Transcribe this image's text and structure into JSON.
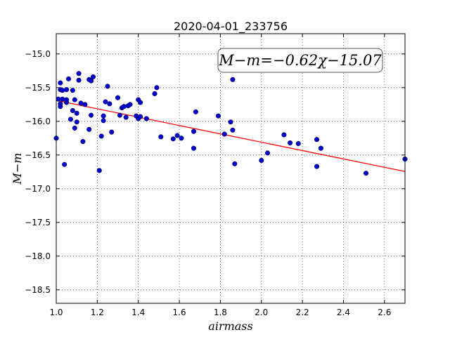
{
  "chart_data": {
    "type": "scatter",
    "title": "2020-04-01_233756",
    "xlabel": "airmass",
    "ylabel": "M−m",
    "xlim": [
      1.0,
      2.7
    ],
    "ylim": [
      -18.7,
      -14.7
    ],
    "y_inverted": true,
    "grid": true,
    "xticks": [
      "1.0",
      "1.2",
      "1.4",
      "1.6",
      "1.8",
      "2.0",
      "2.2",
      "2.4",
      "2.6"
    ],
    "yticks": [
      "−15.0",
      "−15.5",
      "−16.0",
      "−16.5",
      "−17.0",
      "−17.5",
      "−18.0",
      "−18.5"
    ],
    "point_color": "#0000cc",
    "line_color": "#ff0000",
    "fit": {
      "slope": -0.62,
      "intercept": -15.07
    },
    "annotation": "M−m=−0.62χ−15.07",
    "annotation_position": "top-right",
    "points": [
      [
        1.0,
        -16.25
      ],
      [
        1.01,
        -15.67
      ],
      [
        1.02,
        -15.53
      ],
      [
        1.02,
        -15.43
      ],
      [
        1.02,
        -15.78
      ],
      [
        1.02,
        -15.74
      ],
      [
        1.03,
        -15.67
      ],
      [
        1.03,
        -15.54
      ],
      [
        1.04,
        -16.64
      ],
      [
        1.05,
        -15.72
      ],
      [
        1.05,
        -15.53
      ],
      [
        1.05,
        -15.68
      ],
      [
        1.06,
        -15.37
      ],
      [
        1.07,
        -15.97
      ],
      [
        1.08,
        -15.84
      ],
      [
        1.08,
        -15.54
      ],
      [
        1.09,
        -16.1
      ],
      [
        1.09,
        -15.68
      ],
      [
        1.1,
        -16.01
      ],
      [
        1.1,
        -15.88
      ],
      [
        1.11,
        -15.29
      ],
      [
        1.11,
        -15.39
      ],
      [
        1.12,
        -15.73
      ],
      [
        1.13,
        -16.3
      ],
      [
        1.14,
        -15.75
      ],
      [
        1.16,
        -16.12
      ],
      [
        1.16,
        -15.38
      ],
      [
        1.17,
        -15.91
      ],
      [
        1.17,
        -15.4
      ],
      [
        1.18,
        -15.34
      ],
      [
        1.21,
        -16.73
      ],
      [
        1.22,
        -16.22
      ],
      [
        1.23,
        -15.92
      ],
      [
        1.23,
        -15.99
      ],
      [
        1.24,
        -15.71
      ],
      [
        1.25,
        -15.48
      ],
      [
        1.26,
        -15.74
      ],
      [
        1.27,
        -16.16
      ],
      [
        1.3,
        -15.65
      ],
      [
        1.31,
        -15.91
      ],
      [
        1.32,
        -15.8
      ],
      [
        1.33,
        -15.78
      ],
      [
        1.34,
        -15.94
      ],
      [
        1.35,
        -15.77
      ],
      [
        1.36,
        -15.75
      ],
      [
        1.39,
        -15.92
      ],
      [
        1.4,
        -15.68
      ],
      [
        1.4,
        -15.96
      ],
      [
        1.41,
        -15.72
      ],
      [
        1.41,
        -15.93
      ],
      [
        1.44,
        -15.96
      ],
      [
        1.48,
        -15.59
      ],
      [
        1.49,
        -15.5
      ],
      [
        1.51,
        -16.23
      ],
      [
        1.57,
        -16.26
      ],
      [
        1.59,
        -16.21
      ],
      [
        1.61,
        -16.25
      ],
      [
        1.67,
        -16.15
      ],
      [
        1.67,
        -16.4
      ],
      [
        1.68,
        -15.86
      ],
      [
        1.79,
        -15.92
      ],
      [
        1.82,
        -16.19
      ],
      [
        1.85,
        -16.01
      ],
      [
        1.86,
        -16.13
      ],
      [
        1.86,
        -15.38
      ],
      [
        1.87,
        -16.63
      ],
      [
        2.0,
        -16.58
      ],
      [
        2.03,
        -16.47
      ],
      [
        2.11,
        -16.2
      ],
      [
        2.14,
        -16.32
      ],
      [
        2.18,
        -16.33
      ],
      [
        2.27,
        -16.67
      ],
      [
        2.27,
        -16.27
      ],
      [
        2.29,
        -16.4
      ],
      [
        2.51,
        -16.77
      ],
      [
        2.7,
        -16.56
      ]
    ]
  }
}
